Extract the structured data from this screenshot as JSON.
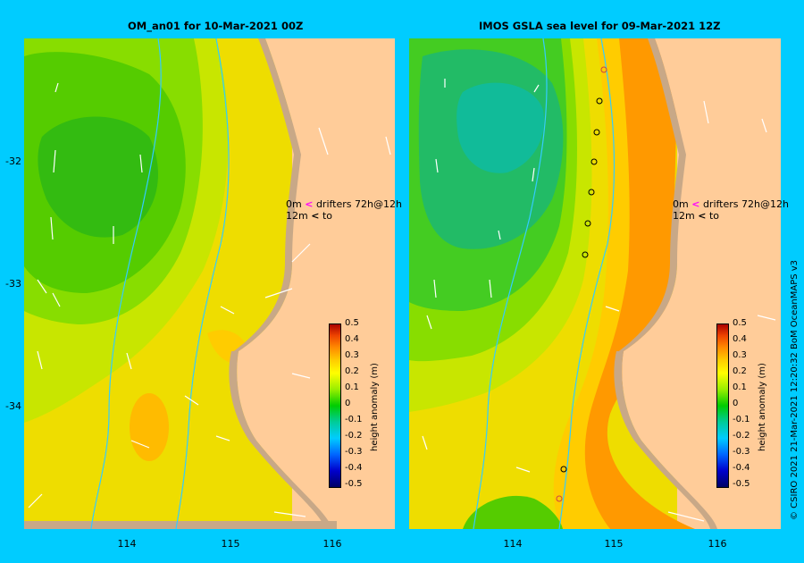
{
  "left_panel": {
    "title": "OM_an01  for 10-Mar-2021 00Z",
    "legend": {
      "line1_value": "0m",
      "line1_text": "drifters 72h@12h",
      "line2_value": "12m",
      "line2_text": "to"
    }
  },
  "right_panel": {
    "title": "IMOS GSLA sea level  for 09-Mar-2021 12Z",
    "legend": {
      "line1_value": "0m",
      "line1_text": "drifters 72h@12h",
      "line2_value": "12m",
      "line2_text": "to"
    }
  },
  "y_ticks": [
    "-32",
    "-33",
    "-34"
  ],
  "x_ticks": [
    "114",
    "115",
    "116"
  ],
  "colorbar": {
    "label": "height anomaly (m)",
    "ticks": [
      "0.5",
      "0.4",
      "0.3",
      "0.2",
      "0.1",
      "0",
      "-0.1",
      "-0.2",
      "-0.3",
      "-0.4",
      "-0.5"
    ]
  },
  "footer": "© CSIRO 2021   21-Mar-2021 12:20:32 BoM OceanMAPS v3",
  "colors": {
    "background": "#00ccff",
    "land": "#ffcc99",
    "coast_shelf": "#c8a887",
    "contour": "#33ccff"
  }
}
